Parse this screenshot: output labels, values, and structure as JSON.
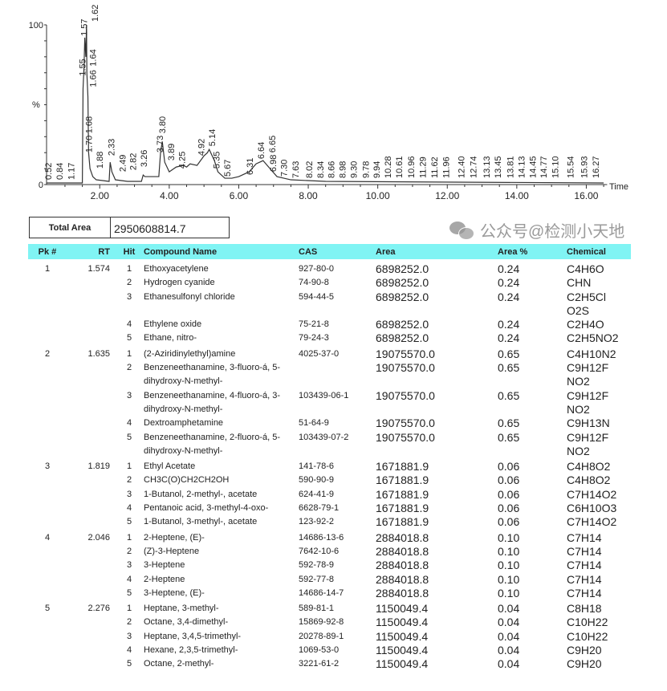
{
  "chart_data": {
    "type": "line",
    "xlabel": "Time",
    "ylabel": "%",
    "xlim": [
      0.47,
      16.6
    ],
    "ylim": [
      0,
      100
    ],
    "x_ticks": [
      "2.00",
      "4.00",
      "6.00",
      "8.00",
      "10.00",
      "12.00",
      "14.00",
      "16.00"
    ],
    "y_ticks": [
      "0",
      "100"
    ],
    "trace": [
      [
        0.47,
        1
      ],
      [
        1.5,
        1
      ],
      [
        1.52,
        60
      ],
      [
        1.55,
        75
      ],
      [
        1.57,
        92
      ],
      [
        1.6,
        80
      ],
      [
        1.62,
        100
      ],
      [
        1.63,
        70
      ],
      [
        1.66,
        55
      ],
      [
        1.68,
        20
      ],
      [
        1.72,
        10
      ],
      [
        1.8,
        5
      ],
      [
        1.9,
        3
      ],
      [
        2.27,
        2
      ],
      [
        2.3,
        14
      ],
      [
        2.35,
        8
      ],
      [
        2.45,
        3
      ],
      [
        2.8,
        2
      ],
      [
        3.2,
        2
      ],
      [
        3.25,
        6
      ],
      [
        3.3,
        5
      ],
      [
        3.7,
        5
      ],
      [
        3.75,
        20
      ],
      [
        3.8,
        27
      ],
      [
        3.87,
        14
      ],
      [
        4.0,
        8
      ],
      [
        4.2,
        11
      ],
      [
        4.4,
        12
      ],
      [
        4.5,
        11
      ],
      [
        4.6,
        13
      ],
      [
        4.8,
        12
      ],
      [
        4.9,
        15
      ],
      [
        5.0,
        18
      ],
      [
        5.1,
        20
      ],
      [
        5.15,
        22
      ],
      [
        5.3,
        15
      ],
      [
        5.4,
        8
      ],
      [
        5.6,
        4
      ],
      [
        5.8,
        4
      ],
      [
        6.0,
        5
      ],
      [
        6.3,
        8
      ],
      [
        6.5,
        13
      ],
      [
        6.7,
        15
      ],
      [
        6.9,
        10
      ],
      [
        7.1,
        5
      ],
      [
        7.5,
        3
      ],
      [
        8.5,
        2
      ],
      [
        16.5,
        1
      ]
    ],
    "peaks": [
      {
        "label": "0.52",
        "rt": 0.52,
        "height": 1
      },
      {
        "label": "0.84",
        "rt": 0.84,
        "height": 1
      },
      {
        "label": "1.17",
        "rt": 1.17,
        "height": 1
      },
      {
        "label": "1.55",
        "rt": 1.5,
        "height": 66
      },
      {
        "label": "1.57",
        "rt": 1.54,
        "height": 91
      },
      {
        "label": "1.62",
        "rt": 1.62,
        "height": 100
      },
      {
        "label": "1.64",
        "rt": 1.64,
        "height": 72
      },
      {
        "label": "1.66",
        "rt": 1.64,
        "height": 59
      },
      {
        "label": "1.68",
        "rt": 1.68,
        "height": 30
      },
      {
        "label": "1.70",
        "rt": 1.68,
        "height": 18
      },
      {
        "label": "1.88",
        "rt": 1.88,
        "height": 8
      },
      {
        "label": "2.33",
        "rt": 2.33,
        "height": 16
      },
      {
        "label": "2.49",
        "rt": 2.49,
        "height": 6
      },
      {
        "label": "2.82",
        "rt": 2.82,
        "height": 7
      },
      {
        "label": "3.26",
        "rt": 3.26,
        "height": 9
      },
      {
        "label": "3.73",
        "rt": 3.73,
        "height": 18
      },
      {
        "label": "3.80",
        "rt": 3.8,
        "height": 30
      },
      {
        "label": "3.89",
        "rt": 3.89,
        "height": 13
      },
      {
        "label": "4.25",
        "rt": 4.25,
        "height": 8
      },
      {
        "label": "4.92",
        "rt": 4.92,
        "height": 16
      },
      {
        "label": "5.14",
        "rt": 5.14,
        "height": 22
      },
      {
        "label": "5.35",
        "rt": 5.35,
        "height": 8
      },
      {
        "label": "5.67",
        "rt": 5.67,
        "height": 3
      },
      {
        "label": "6.31",
        "rt": 6.31,
        "height": 4
      },
      {
        "label": "6.64",
        "rt": 6.64,
        "height": 14
      },
      {
        "label": "6.65",
        "rt": 6.8,
        "height": 18
      },
      {
        "label": "6.98",
        "rt": 6.98,
        "height": 6
      },
      {
        "label": "7.30",
        "rt": 7.3,
        "height": 3
      },
      {
        "label": "7.63",
        "rt": 7.63,
        "height": 2
      },
      {
        "label": "8.02",
        "rt": 8.02,
        "height": 2
      },
      {
        "label": "8.34",
        "rt": 8.34,
        "height": 2
      },
      {
        "label": "8.66",
        "rt": 8.66,
        "height": 2
      },
      {
        "label": "8.98",
        "rt": 8.98,
        "height": 2
      },
      {
        "label": "9.30",
        "rt": 9.3,
        "height": 2
      },
      {
        "label": "9.78",
        "rt": 9.65,
        "height": 2
      },
      {
        "label": "9.94",
        "rt": 9.94,
        "height": 2
      },
      {
        "label": "10.28",
        "rt": 10.28,
        "height": 2
      },
      {
        "label": "10.61",
        "rt": 10.61,
        "height": 2
      },
      {
        "label": "10.96",
        "rt": 10.96,
        "height": 2
      },
      {
        "label": "11.29",
        "rt": 11.29,
        "height": 2
      },
      {
        "label": "11.62",
        "rt": 11.62,
        "height": 2
      },
      {
        "label": "11.96",
        "rt": 11.96,
        "height": 2
      },
      {
        "label": "12.40",
        "rt": 12.4,
        "height": 2
      },
      {
        "label": "12.74",
        "rt": 12.74,
        "height": 2
      },
      {
        "label": "13.13",
        "rt": 13.13,
        "height": 2
      },
      {
        "label": "13.45",
        "rt": 13.45,
        "height": 2
      },
      {
        "label": "13.81",
        "rt": 13.81,
        "height": 2
      },
      {
        "label": "14.13",
        "rt": 14.13,
        "height": 2
      },
      {
        "label": "14.45",
        "rt": 14.45,
        "height": 2
      },
      {
        "label": "14.77",
        "rt": 14.77,
        "height": 2
      },
      {
        "label": "15.10",
        "rt": 15.1,
        "height": 2
      },
      {
        "label": "15.54",
        "rt": 15.54,
        "height": 2
      },
      {
        "label": "15.93",
        "rt": 15.93,
        "height": 2
      },
      {
        "label": "16.27",
        "rt": 16.27,
        "height": 2
      }
    ]
  },
  "total_area": {
    "label": "Total Area",
    "value": "2950608814.7"
  },
  "table": {
    "header_color": "#80f4f4",
    "columns": [
      "Pk #",
      "RT",
      "Hit",
      "Compound Name",
      "CAS",
      "Area",
      "Area  %",
      "Chemical"
    ],
    "rows": [
      {
        "pk": "1",
        "rt": "1.574",
        "hit": "1",
        "name": "Ethoxyacetylene",
        "cas": "927-80-0",
        "area": "6898252.0",
        "pct": "0.24",
        "formula": "C4H6O"
      },
      {
        "pk": "",
        "rt": "",
        "hit": "2",
        "name": "Hydrogen cyanide",
        "cas": "74-90-8",
        "area": "6898252.0",
        "pct": "0.24",
        "formula": "CHN"
      },
      {
        "pk": "",
        "rt": "",
        "hit": "3",
        "name": "Ethanesulfonyl chloride",
        "cas": "594-44-5",
        "area": "6898252.0",
        "pct": "0.24",
        "formula": "C2H5Cl O2S"
      },
      {
        "pk": "",
        "rt": "",
        "hit": "4",
        "name": "Ethylene oxide",
        "cas": "75-21-8",
        "area": "6898252.0",
        "pct": "0.24",
        "formula": "C2H4O"
      },
      {
        "pk": "",
        "rt": "",
        "hit": "5",
        "name": "Ethane, nitro-",
        "cas": "79-24-3",
        "area": "6898252.0",
        "pct": "0.24",
        "formula": "C2H5NO2"
      },
      {
        "pk": "2",
        "rt": "1.635",
        "hit": "1",
        "name": "(2-Aziridinylethyl)amine",
        "cas": "4025-37-0",
        "area": "19075570.0",
        "pct": "0.65",
        "formula": "C4H10N2"
      },
      {
        "pk": "",
        "rt": "",
        "hit": "2",
        "name": "Benzeneethanamine, 3-fluoro-á, 5-dihydroxy-N-methyl-",
        "cas": "",
        "area": "19075570.0",
        "pct": "0.65",
        "formula": "C9H12F NO2"
      },
      {
        "pk": "",
        "rt": "",
        "hit": "3",
        "name": "Benzeneethanamine, 4-fluoro-á, 3-dihydroxy-N-methyl-",
        "cas": "103439-06-1",
        "area": "19075570.0",
        "pct": "0.65",
        "formula": "C9H12F NO2"
      },
      {
        "pk": "",
        "rt": "",
        "hit": "4",
        "name": "Dextroamphetamine",
        "cas": "51-64-9",
        "area": "19075570.0",
        "pct": "0.65",
        "formula": "C9H13N"
      },
      {
        "pk": "",
        "rt": "",
        "hit": "5",
        "name": "Benzeneethanamine, 2-fluoro-á, 5-dihydroxy-N-methyl-",
        "cas": "103439-07-2",
        "area": "19075570.0",
        "pct": "0.65",
        "formula": "C9H12F NO2"
      },
      {
        "pk": "3",
        "rt": "1.819",
        "hit": "1",
        "name": "Ethyl Acetate",
        "cas": "141-78-6",
        "area": "1671881.9",
        "pct": "0.06",
        "formula": "C4H8O2"
      },
      {
        "pk": "",
        "rt": "",
        "hit": "2",
        "name": "CH3C(O)CH2CH2OH",
        "cas": "590-90-9",
        "area": "1671881.9",
        "pct": "0.06",
        "formula": "C4H8O2"
      },
      {
        "pk": "",
        "rt": "",
        "hit": "3",
        "name": "1-Butanol, 2-methyl-, acetate",
        "cas": "624-41-9",
        "area": "1671881.9",
        "pct": "0.06",
        "formula": "C7H14O2"
      },
      {
        "pk": "",
        "rt": "",
        "hit": "4",
        "name": "Pentanoic acid, 3-methyl-4-oxo-",
        "cas": "6628-79-1",
        "area": "1671881.9",
        "pct": "0.06",
        "formula": "C6H10O3"
      },
      {
        "pk": "",
        "rt": "",
        "hit": "5",
        "name": "1-Butanol, 3-methyl-, acetate",
        "cas": "123-92-2",
        "area": "1671881.9",
        "pct": "0.06",
        "formula": "C7H14O2"
      },
      {
        "pk": "4",
        "rt": "2.046",
        "hit": "1",
        "name": "2-Heptene, (E)-",
        "cas": "14686-13-6",
        "area": "2884018.8",
        "pct": "0.10",
        "formula": "C7H14"
      },
      {
        "pk": "",
        "rt": "",
        "hit": "2",
        "name": "(Z)-3-Heptene",
        "cas": "7642-10-6",
        "area": "2884018.8",
        "pct": "0.10",
        "formula": "C7H14"
      },
      {
        "pk": "",
        "rt": "",
        "hit": "3",
        "name": "3-Heptene",
        "cas": "592-78-9",
        "area": "2884018.8",
        "pct": "0.10",
        "formula": "C7H14"
      },
      {
        "pk": "",
        "rt": "",
        "hit": "4",
        "name": "2-Heptene",
        "cas": "592-77-8",
        "area": "2884018.8",
        "pct": "0.10",
        "formula": "C7H14"
      },
      {
        "pk": "",
        "rt": "",
        "hit": "5",
        "name": "3-Heptene, (E)-",
        "cas": "14686-14-7",
        "area": "2884018.8",
        "pct": "0.10",
        "formula": "C7H14"
      },
      {
        "pk": "5",
        "rt": "2.276",
        "hit": "1",
        "name": "Heptane, 3-methyl-",
        "cas": "589-81-1",
        "area": "1150049.4",
        "pct": "0.04",
        "formula": "C8H18"
      },
      {
        "pk": "",
        "rt": "",
        "hit": "2",
        "name": "Octane, 3,4-dimethyl-",
        "cas": "15869-92-8",
        "area": "1150049.4",
        "pct": "0.04",
        "formula": "C10H22"
      },
      {
        "pk": "",
        "rt": "",
        "hit": "3",
        "name": "Heptane, 3,4,5-trimethyl-",
        "cas": "20278-89-1",
        "area": "1150049.4",
        "pct": "0.04",
        "formula": "C10H22"
      },
      {
        "pk": "",
        "rt": "",
        "hit": "4",
        "name": "Hexane, 2,3,5-trimethyl-",
        "cas": "1069-53-0",
        "area": "1150049.4",
        "pct": "0.04",
        "formula": "C9H20"
      },
      {
        "pk": "",
        "rt": "",
        "hit": "5",
        "name": "Octane, 2-methyl-",
        "cas": "3221-61-2",
        "area": "1150049.4",
        "pct": "0.04",
        "formula": "C9H20"
      }
    ]
  },
  "watermark": {
    "text": "公众号@检测小天地",
    "icon": "wechat-icon"
  }
}
